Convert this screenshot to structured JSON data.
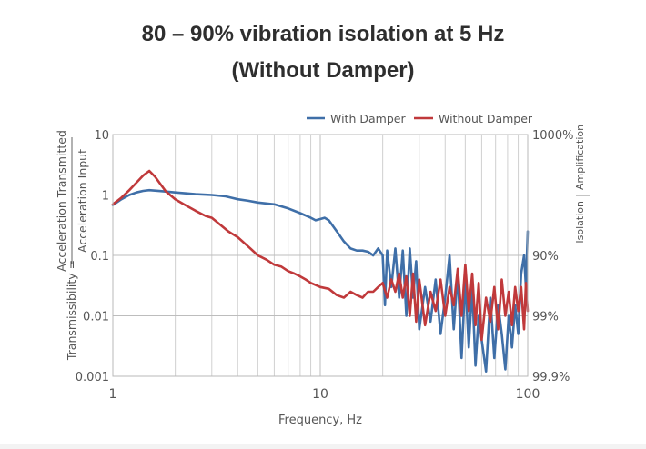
{
  "chart_data": {
    "type": "line",
    "title": "80 – 90% vibration isolation at 5 Hz",
    "subtitle": "(Without Damper)",
    "xlabel": "Frequency, Hz",
    "ylabel_prefix": "Transmissibility =",
    "ylabel_numerator": "Acceleration Transmitted",
    "ylabel_denominator": "Acceleration Input",
    "xscale": "log",
    "yscale": "log",
    "xlim": [
      1,
      100
    ],
    "ylim": [
      0.001,
      10
    ],
    "x_ticks": [
      1,
      10,
      100
    ],
    "x_tick_labels": [
      "1",
      "10",
      "100"
    ],
    "y_ticks": [
      10,
      1,
      0.1,
      0.01,
      0.001
    ],
    "y_tick_labels": [
      "10",
      "1",
      "0.1",
      "0.01",
      "0.001"
    ],
    "right_axis": {
      "tick_values": [
        10,
        0.1,
        0.01,
        0.001
      ],
      "tick_labels": [
        "1000%",
        "90%",
        "99%",
        "99.9%"
      ],
      "region_labels": {
        "above": "Amplification",
        "below": "Isolation"
      },
      "divider_at": 1
    },
    "grid": true,
    "legend": {
      "position": "top-right",
      "entries": [
        {
          "name": "With Damper",
          "color": "#3f6fa8"
        },
        {
          "name": "Without Damper",
          "color": "#c0393b"
        }
      ]
    },
    "series": [
      {
        "name": "With Damper",
        "color": "#3f6fa8",
        "x": [
          1,
          1.1,
          1.2,
          1.3,
          1.4,
          1.5,
          1.7,
          2,
          2.5,
          3,
          3.5,
          4,
          4.5,
          5,
          6,
          7,
          8,
          9,
          9.5,
          10,
          10.5,
          11,
          12,
          13,
          14,
          15,
          16,
          17,
          18,
          19,
          20,
          20.5,
          21,
          22,
          23,
          24,
          25,
          26,
          27,
          28,
          29,
          30,
          32,
          34,
          36,
          38,
          40,
          42,
          44,
          46,
          48,
          50,
          52,
          54,
          56,
          58,
          60,
          63,
          66,
          69,
          72,
          75,
          78,
          81,
          84,
          87,
          90,
          93,
          96,
          98,
          100
        ],
        "y": [
          0.68,
          0.85,
          1.0,
          1.1,
          1.17,
          1.2,
          1.16,
          1.1,
          1.03,
          1.0,
          0.95,
          0.85,
          0.8,
          0.75,
          0.7,
          0.6,
          0.5,
          0.42,
          0.38,
          0.4,
          0.42,
          0.38,
          0.25,
          0.17,
          0.13,
          0.12,
          0.12,
          0.115,
          0.1,
          0.13,
          0.1,
          0.015,
          0.12,
          0.03,
          0.13,
          0.02,
          0.12,
          0.01,
          0.13,
          0.02,
          0.08,
          0.006,
          0.03,
          0.008,
          0.04,
          0.005,
          0.02,
          0.1,
          0.006,
          0.05,
          0.002,
          0.04,
          0.003,
          0.03,
          0.0015,
          0.01,
          0.004,
          0.0012,
          0.02,
          0.002,
          0.015,
          0.005,
          0.0013,
          0.01,
          0.003,
          0.015,
          0.005,
          0.05,
          0.1,
          0.03,
          0.25
        ]
      },
      {
        "name": "Without Damper",
        "color": "#c0393b",
        "x": [
          1,
          1.1,
          1.2,
          1.3,
          1.4,
          1.5,
          1.6,
          1.7,
          1.8,
          2,
          2.2,
          2.5,
          2.8,
          3,
          3.3,
          3.6,
          4,
          4.5,
          5,
          5.5,
          6,
          6.5,
          7,
          7.5,
          8,
          8.5,
          9,
          10,
          11,
          12,
          13,
          14,
          15,
          16,
          17,
          18,
          19,
          20,
          21,
          22,
          23,
          24,
          25,
          26,
          27,
          28,
          29,
          30,
          32,
          34,
          36,
          38,
          40,
          42,
          44,
          46,
          48,
          50,
          52,
          54,
          56,
          58,
          60,
          63,
          66,
          69,
          72,
          75,
          78,
          81,
          84,
          87,
          90,
          93,
          96,
          98,
          100
        ],
        "y": [
          0.7,
          0.9,
          1.2,
          1.6,
          2.1,
          2.5,
          2.0,
          1.5,
          1.15,
          0.85,
          0.7,
          0.55,
          0.45,
          0.42,
          0.32,
          0.25,
          0.2,
          0.14,
          0.1,
          0.085,
          0.07,
          0.065,
          0.055,
          0.05,
          0.045,
          0.04,
          0.035,
          0.03,
          0.028,
          0.022,
          0.02,
          0.025,
          0.022,
          0.02,
          0.025,
          0.025,
          0.03,
          0.035,
          0.02,
          0.04,
          0.025,
          0.05,
          0.02,
          0.045,
          0.01,
          0.05,
          0.008,
          0.04,
          0.007,
          0.025,
          0.012,
          0.04,
          0.01,
          0.03,
          0.015,
          0.06,
          0.01,
          0.07,
          0.012,
          0.05,
          0.007,
          0.035,
          0.004,
          0.02,
          0.008,
          0.03,
          0.006,
          0.04,
          0.01,
          0.025,
          0.007,
          0.03,
          0.012,
          0.03,
          0.006,
          0.035,
          0.012
        ]
      }
    ]
  }
}
